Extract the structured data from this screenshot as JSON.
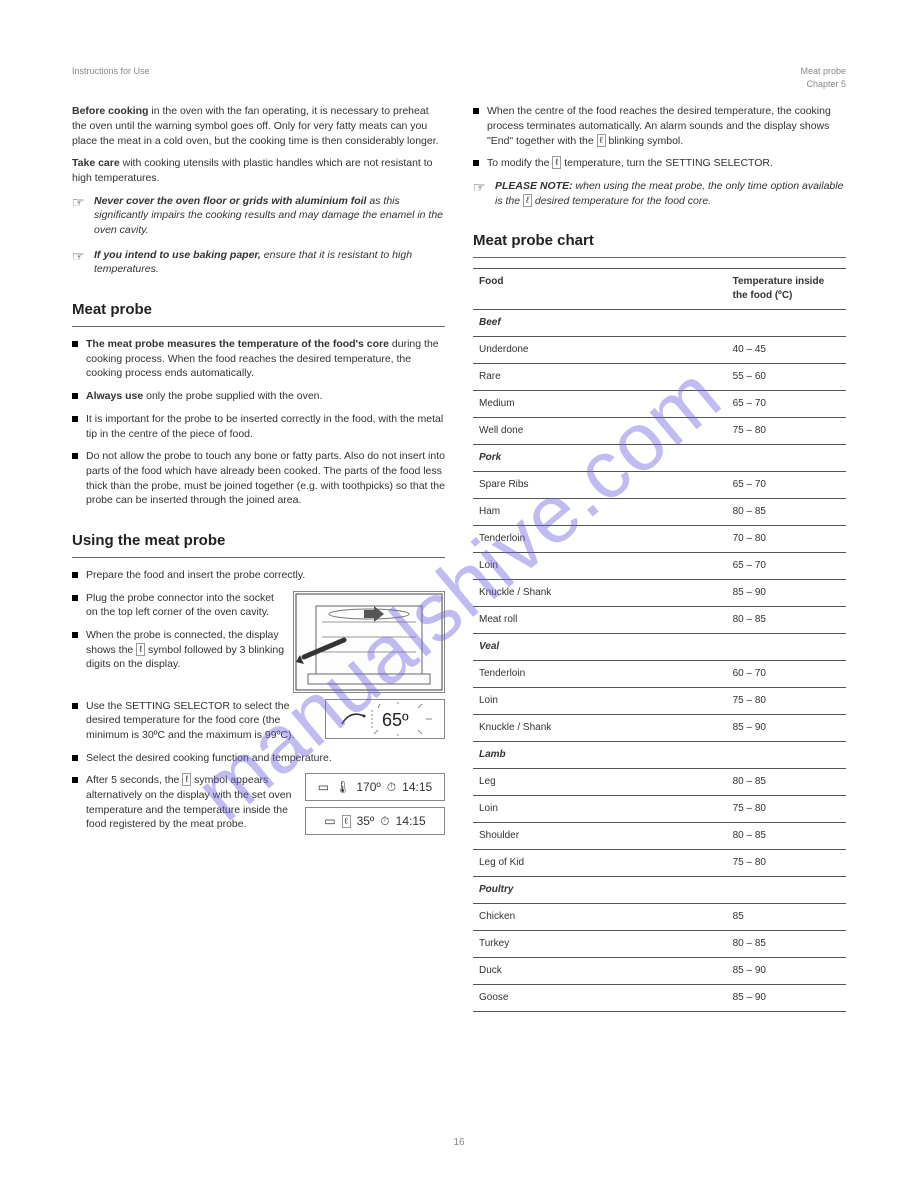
{
  "header": {
    "left_line1": "Instructions for Use",
    "right_line1": "Meat probe",
    "right_line2": "Chapter 5"
  },
  "watermark_text": "manualshive.com",
  "col1": {
    "para1_lead": "Before cooking",
    "para1_body": " in the oven with the fan operating, it is necessary to preheat the oven until the warning symbol goes off. Only for very fatty meats can you place the meat in a cold oven, but the cooking time is then considerably longer.",
    "para2_lead": "Take care",
    "para2_body": " with cooking utensils with plastic handles which are not resistant to high temperatures.",
    "note1_lead": "Never cover the oven floor or grids with aluminium foil",
    "note1_body": " as this significantly impairs the cooking results and may damage the enamel in the oven cavity.",
    "note2_lead": "If you intend to use baking paper,",
    "note2_body": " ensure that it is resistant to high temperatures.",
    "section1_title": "Meat probe",
    "b1_lead": "The meat probe measures the temperature of the food's core",
    "b1_body": " during the cooking process. When the food reaches the desired temperature, the cooking process ends automatically.",
    "b2_lead": "Always use",
    "b2_body": " only the probe supplied with the oven.",
    "b3": "It is important for the probe to be inserted correctly in the food, with the metal tip in the centre of the piece of food.",
    "b4": "Do not allow the probe to touch any bone or fatty parts. Also do not insert into parts of the food which have already been cooked. The parts of the food less thick than the probe, must be joined together (e.g. with toothpicks) so that the probe can be inserted through the joined area.",
    "section2_title": "Using the meat probe",
    "s2_b1": "Prepare the food and insert the probe correctly.",
    "s2_b2": "Plug the probe connector into the socket on the top left corner of the oven cavity.",
    "s2_b3_a": "When the probe is connected, the display shows the",
    "s2_b3_b": "symbol followed by 3 blinking digits on the display.",
    "s2_b4": "Use the SETTING SELECTOR to select the desired temperature for the food core (the minimum is 30ºC and the maximum is 99ºC).",
    "s2_b5": "Select the desired cooking function and temperature.",
    "s2_b6_a": "After 5 seconds, the",
    "s2_b6_b": "symbol appears alternatively on the display with the set oven temperature and the temperature inside the food registered by the meat probe."
  },
  "col2": {
    "b1": "When the centre of the food reaches the desired temperature, the cooking process terminates automatically. An alarm sounds and the display shows \"End\" together with the",
    "b1_end": "blinking symbol.",
    "b2_a": "To modify the",
    "b2_b": "temperature, turn the SETTING SELECTOR.",
    "note_a": "PLEASE NOTE: ",
    "note_b": "when using the meat probe, the only time option available is the",
    "note_c": "desired temperature for the food core.",
    "section_title": "Meat probe chart",
    "th1": "Food",
    "th2": "Temperature inside the food (ºC)",
    "rows": [
      {
        "sub": "Beef"
      },
      {
        "f": "Underdone",
        "t": "40 – 45"
      },
      {
        "f": "Rare",
        "t": "55 – 60"
      },
      {
        "f": "Medium",
        "t": "65 – 70"
      },
      {
        "f": "Well done",
        "t": "75 – 80"
      },
      {
        "sub": "Pork"
      },
      {
        "f": "Spare Ribs",
        "t": "65 – 70"
      },
      {
        "f": "Ham",
        "t": "80 – 85"
      },
      {
        "f": "Tenderloin",
        "t": "70 – 80"
      },
      {
        "f": "Loin",
        "t": "65 – 70"
      },
      {
        "f": "Knuckle / Shank",
        "t": "85 – 90"
      },
      {
        "f": "Meat roll",
        "t": "80 – 85"
      },
      {
        "sub": "Veal"
      },
      {
        "f": "Tenderloin",
        "t": "60 – 70"
      },
      {
        "f": "Loin",
        "t": "75 – 80"
      },
      {
        "f": "Knuckle / Shank",
        "t": "85 – 90"
      },
      {
        "sub": "Lamb"
      },
      {
        "f": "Leg",
        "t": "80 – 85"
      },
      {
        "f": "Loin",
        "t": "75 – 80"
      },
      {
        "f": "Shoulder",
        "t": "80 – 85"
      },
      {
        "f": "Leg of Kid",
        "t": "75 – 80"
      },
      {
        "sub": "Poultry"
      },
      {
        "f": "Chicken",
        "t": "85"
      },
      {
        "f": "Turkey",
        "t": "80 – 85"
      },
      {
        "f": "Duck",
        "t": "85 – 90"
      },
      {
        "f": "Goose",
        "t": "85 – 90"
      }
    ]
  },
  "figures": {
    "oven_label": "oven-cavity-probe-connection",
    "lcd_big_value": "65º",
    "lcd1_temp": "170º",
    "lcd1_time": "14:15",
    "lcd2_temp": "35º",
    "lcd2_time": "14:15"
  },
  "page_number": "16",
  "probe_glyph": "ℓ"
}
